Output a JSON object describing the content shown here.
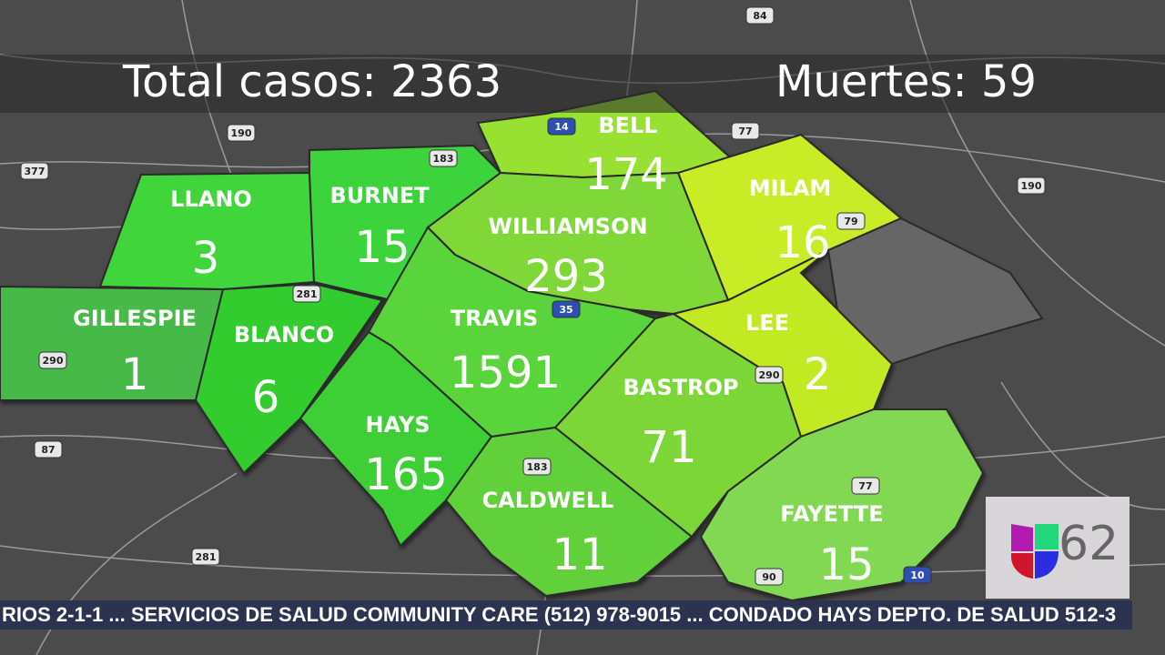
{
  "header": {
    "total_label": "Total casos: 2363",
    "deaths_label": "Muertes: 59"
  },
  "counties": [
    {
      "name": "GILLESPIE",
      "count": "1",
      "color": "#47b94a"
    },
    {
      "name": "LLANO",
      "count": "3",
      "color": "#3fd63a"
    },
    {
      "name": "BURNET",
      "count": "15",
      "color": "#3ed33c"
    },
    {
      "name": "BLANCO",
      "count": "6",
      "color": "#33cc2e"
    },
    {
      "name": "BELL",
      "count": "174",
      "color": "#98e030"
    },
    {
      "name": "MILAM",
      "count": "16",
      "color": "#c8ec28"
    },
    {
      "name": "WILLIAMSON",
      "count": "293",
      "color": "#80d838"
    },
    {
      "name": "TRAVIS",
      "count": "1591",
      "color": "#5ad43a"
    },
    {
      "name": "HAYS",
      "count": "165",
      "color": "#3ccf36"
    },
    {
      "name": "LEE",
      "count": "2",
      "color": "#c2ea22"
    },
    {
      "name": "BASTROP",
      "count": "71",
      "color": "#7cd638"
    },
    {
      "name": "CALDWELL",
      "count": "11",
      "color": "#62d03a"
    },
    {
      "name": "FAYETTE",
      "count": "15",
      "color": "#82d852"
    }
  ],
  "highways": [
    "190",
    "377",
    "183",
    "14",
    "77",
    "190",
    "79",
    "281",
    "290",
    "35",
    "290",
    "183",
    "77",
    "87",
    "281",
    "90",
    "10",
    "84"
  ],
  "ticker": {
    "text": "RIOS 2-1-1 ... SERVICIOS DE SALUD COMMUNITY CARE (512) 978-9015 ... CONDADO HAYS DEPTO. DE SALUD 512-3"
  },
  "logo": {
    "brand": "Univision",
    "channel": "62"
  }
}
